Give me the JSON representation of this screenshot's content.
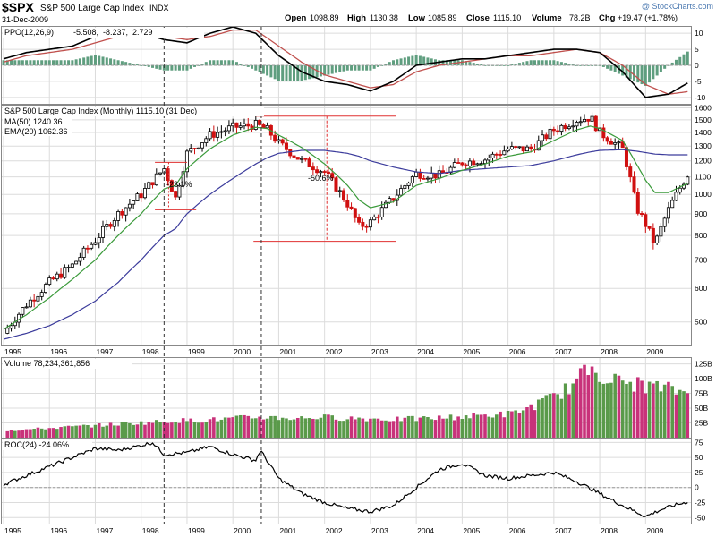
{
  "header": {
    "symbol": "$SPX",
    "name": "S&P 500 Large Cap Index",
    "exchange": "INDX",
    "date": "31-Dec-2009",
    "watermark": "@ StockCharts.com",
    "quote": {
      "open_label": "Open",
      "open": "1098.89",
      "high_label": "High",
      "high": "1130.38",
      "low_label": "Low",
      "low": "1085.89",
      "close_label": "Close",
      "close": "1115.10",
      "volume_label": "Volume",
      "volume": "78.2B",
      "chg_label": "Chg",
      "chg": "+19.47 (+1.78%)"
    }
  },
  "colors": {
    "ppo_line": "#000000",
    "ppo_signal": "#c0504d",
    "ppo_hist": "#5f9e7f",
    "ma50": "#3c3c9c",
    "ema20": "#3a9a3a",
    "candle_up": "#ffffff",
    "candle_down": "#d01010",
    "vol_up": "#5a9a4a",
    "vol_down": "#c8327a",
    "annotation": "#e03030",
    "grid": "#dcdcdc"
  },
  "panels": {
    "ppo_legend": {
      "label": "PPO(12,26,9)",
      "v1": "-5.508,",
      "v2": "-8.237,",
      "v3": "2.729"
    },
    "price_legend": {
      "title": "S&P 500 Large Cap Index (Monthly) 1115.10 (31 Dec)",
      "ma": "MA(50) 1240.36",
      "ema": "EMA(20) 1062.36"
    },
    "volume_legend": {
      "label": "Volume 78,234,361,856"
    },
    "roc_legend": {
      "label": "ROC(24) -24.06%"
    }
  },
  "annotations": {
    "drop1": "-23.1%",
    "drop2": "-50.6%"
  },
  "chart_data": [
    {
      "type": "line",
      "name": "PPO(12,26,9)",
      "yticks": [
        "10",
        "5",
        "0",
        "-5",
        "-10"
      ],
      "ylim": [
        -12,
        12
      ],
      "x": [
        1995.0,
        1995.5,
        1996.0,
        1996.5,
        1997.0,
        1997.5,
        1998.0,
        1998.5,
        1999.0,
        1999.5,
        2000.0,
        2000.5,
        2001.0,
        2001.5,
        2002.0,
        2002.5,
        2003.0,
        2003.5,
        2004.0,
        2004.5,
        2005.0,
        2005.5,
        2006.0,
        2006.5,
        2007.0,
        2007.5,
        2008.0,
        2008.5,
        2009.0,
        2009.5,
        2009.92
      ],
      "series": [
        {
          "values": [
            2,
            4,
            5,
            6,
            9,
            10,
            10,
            8,
            7,
            10,
            12,
            10,
            3,
            -2,
            -5,
            -6,
            -8,
            -5,
            0,
            1,
            2,
            2,
            3,
            4,
            5,
            5,
            4,
            -2,
            -10,
            -9,
            -5.5
          ]
        },
        {
          "values": [
            1,
            3,
            4,
            5,
            7,
            9,
            10,
            9,
            8,
            9,
            11,
            11,
            6,
            1,
            -3,
            -5,
            -7,
            -6,
            -2,
            0,
            1,
            2,
            3,
            3,
            4,
            5,
            4,
            0,
            -6,
            -9,
            -8.2
          ]
        }
      ]
    },
    {
      "type": "candlestick",
      "title": "S&P 500 Large Cap Index (Monthly)",
      "yticks": [
        "1600",
        "1500",
        "1400",
        "1300",
        "1200",
        "1100",
        "1000",
        "900",
        "800",
        "700",
        "600",
        "500"
      ],
      "ylim": [
        440,
        1620
      ],
      "xticks": [
        "1995",
        "1996",
        "1997",
        "1998",
        "1999",
        "2000",
        "2001",
        "2002",
        "2003",
        "2004",
        "2005",
        "2006",
        "2007",
        "2008",
        "2009"
      ],
      "x": [
        1995.0,
        1995.5,
        1996.0,
        1996.5,
        1997.0,
        1997.5,
        1998.0,
        1998.5,
        1998.75,
        1999.0,
        1999.5,
        2000.0,
        2000.5,
        2000.75,
        2001.0,
        2001.5,
        2002.0,
        2002.5,
        2002.75,
        2003.0,
        2003.5,
        2004.0,
        2004.5,
        2005.0,
        2005.5,
        2006.0,
        2006.5,
        2007.0,
        2007.5,
        2007.8,
        2008.0,
        2008.5,
        2008.8,
        2009.0,
        2009.2,
        2009.5,
        2009.92
      ],
      "close": [
        470,
        550,
        620,
        680,
        780,
        900,
        1000,
        1150,
        980,
        1250,
        1380,
        1440,
        1460,
        1420,
        1320,
        1200,
        1130,
        950,
        840,
        860,
        980,
        1120,
        1110,
        1190,
        1210,
        1280,
        1280,
        1420,
        1500,
        1520,
        1400,
        1280,
        930,
        850,
        760,
        920,
        1115
      ],
      "series": [
        {
          "name": "MA(50)",
          "values": [
            455,
            470,
            490,
            520,
            560,
            620,
            700,
            800,
            830,
            900,
            1000,
            1090,
            1180,
            1220,
            1250,
            1270,
            1270,
            1250,
            1230,
            1200,
            1160,
            1130,
            1120,
            1140,
            1150,
            1160,
            1170,
            1200,
            1240,
            1260,
            1270,
            1275,
            1265,
            1255,
            1245,
            1240,
            1240
          ]
        },
        {
          "name": "EMA(20)",
          "values": [
            480,
            520,
            570,
            630,
            700,
            800,
            900,
            1030,
            1050,
            1150,
            1280,
            1380,
            1440,
            1430,
            1380,
            1290,
            1180,
            1050,
            970,
            930,
            960,
            1050,
            1090,
            1140,
            1180,
            1230,
            1260,
            1340,
            1420,
            1450,
            1430,
            1340,
            1180,
            1080,
            1010,
            1010,
            1062
          ]
        }
      ]
    },
    {
      "type": "bar",
      "name": "Volume",
      "yticks": [
        "125B",
        "100B",
        "75B",
        "50B",
        "25B"
      ],
      "ylim": [
        0,
        135
      ],
      "values_B": [
        12,
        14,
        16,
        18,
        20,
        22,
        24,
        26,
        28,
        30,
        30,
        32,
        34,
        36,
        35,
        34,
        36,
        35,
        34,
        33,
        32,
        33,
        34,
        36,
        38,
        40,
        42,
        55,
        70,
        90,
        125,
        100,
        95,
        90,
        85,
        78
      ]
    },
    {
      "type": "line",
      "name": "ROC(24)",
      "yticks": [
        "75",
        "50",
        "25",
        "0",
        "-25",
        "-50"
      ],
      "ylim": [
        -60,
        80
      ],
      "x": [
        1995.0,
        1995.5,
        1996.0,
        1996.5,
        1997.0,
        1997.5,
        1998.0,
        1998.25,
        1998.5,
        1999.0,
        1999.5,
        2000.0,
        2000.5,
        2000.6,
        2001.0,
        2001.5,
        2002.0,
        2002.5,
        2003.0,
        2003.5,
        2004.0,
        2004.5,
        2005.0,
        2005.5,
        2006.0,
        2006.5,
        2007.0,
        2007.5,
        2008.0,
        2008.5,
        2009.0,
        2009.3,
        2009.6,
        2009.92
      ],
      "values": [
        5,
        20,
        35,
        50,
        65,
        62,
        70,
        75,
        55,
        58,
        68,
        55,
        45,
        62,
        15,
        -10,
        -25,
        -35,
        -40,
        -30,
        0,
        30,
        40,
        20,
        15,
        20,
        25,
        10,
        -10,
        -30,
        -48,
        -38,
        -30,
        -24
      ]
    }
  ]
}
